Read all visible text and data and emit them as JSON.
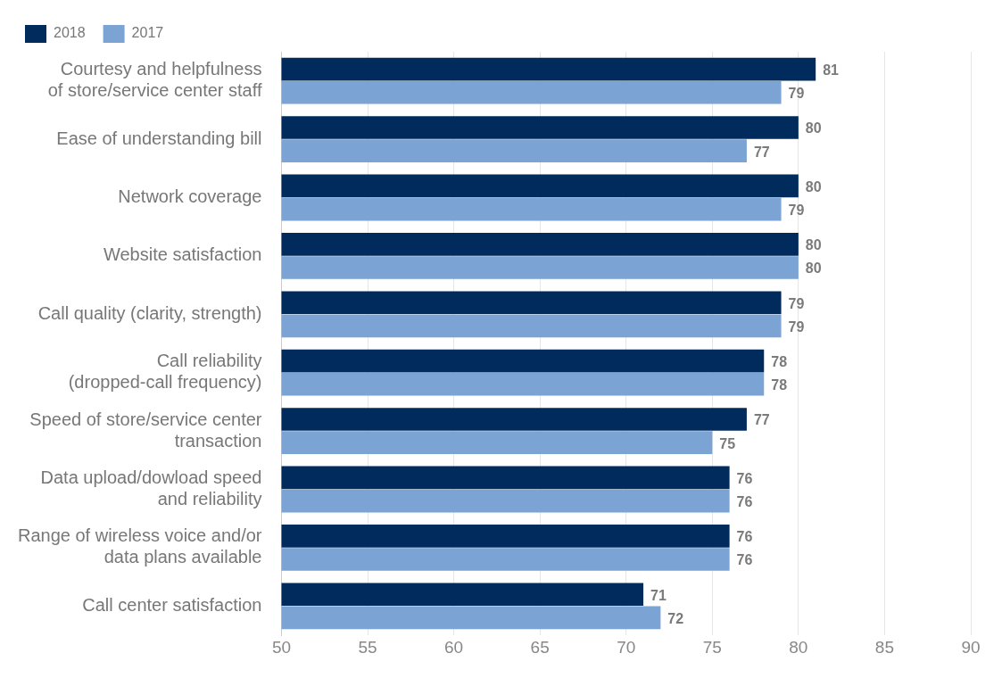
{
  "chart_data": {
    "type": "bar",
    "orientation": "horizontal",
    "categories": [
      "Courtesy and helpfulness\nof store/service center staff",
      "Ease of understanding bill",
      "Network coverage",
      "Website satisfaction",
      "Call quality (clarity, strength)",
      "Call reliability\n(dropped-call frequency)",
      "Speed of store/service center\ntransaction",
      "Data upload/dowload speed\nand reliability",
      "Range of wireless voice and/or\ndata plans available",
      "Call center satisfaction"
    ],
    "series": [
      {
        "name": "2018",
        "color": "#002b5c",
        "values": [
          81,
          80,
          80,
          80,
          79,
          78,
          77,
          76,
          76,
          71
        ]
      },
      {
        "name": "2017",
        "color": "#7ba3d4",
        "values": [
          79,
          77,
          79,
          80,
          79,
          78,
          75,
          76,
          76,
          72
        ]
      }
    ],
    "xlim": [
      50,
      90
    ],
    "xticks": [
      50,
      55,
      60,
      65,
      70,
      75,
      80,
      85,
      90
    ],
    "grid": "x",
    "legend": "top left",
    "data_labels": true
  }
}
